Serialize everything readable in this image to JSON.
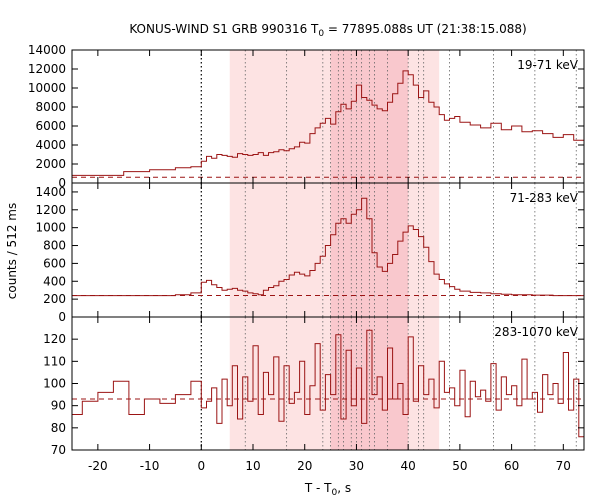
{
  "title": {
    "prefix": "KONUS-WIND S1 GRB 990316 T",
    "sub": "0",
    "suffix": " = 77895.088s UT (21:38:15.088)"
  },
  "xlabel": {
    "prefix": "T - T",
    "sub": "0",
    "suffix": ", s"
  },
  "ylabel": "counts / 512 ms",
  "colors": {
    "series": "#9b1414",
    "shade_light": "#fde3e3",
    "shade_dark": "#f9c8cd",
    "axis": "#000000",
    "guide": "#666666"
  },
  "chart_data": [
    {
      "type": "line",
      "band": "19-71 keV",
      "xlim": [
        -25,
        74
      ],
      "ylim": [
        0,
        14000
      ],
      "yticks": [
        0,
        2000,
        4000,
        6000,
        8000,
        10000,
        12000,
        14000
      ],
      "background": 600,
      "series": [
        {
          "x": [
            -25,
            -15,
            -10,
            -5,
            -2,
            0,
            1,
            2,
            3,
            4,
            5,
            6,
            7,
            8,
            9,
            10,
            11,
            12,
            13,
            14,
            15,
            16,
            17,
            18,
            19,
            20,
            21,
            22,
            23,
            24,
            25,
            26,
            27,
            28,
            29,
            30,
            31,
            32,
            33,
            34,
            35,
            36,
            37,
            38,
            39,
            40,
            41,
            42,
            43,
            44,
            45,
            46,
            47,
            48,
            49,
            50,
            52,
            54,
            56,
            58,
            60,
            62,
            64,
            66,
            68,
            70,
            72,
            74
          ],
          "y": [
            800,
            1200,
            1400,
            1600,
            1700,
            2300,
            2800,
            2600,
            3000,
            2900,
            2800,
            2700,
            3100,
            3000,
            2900,
            3000,
            3200,
            2900,
            3200,
            3300,
            3500,
            3400,
            3600,
            3800,
            4300,
            4200,
            5200,
            5800,
            6300,
            6800,
            6200,
            7500,
            8300,
            7800,
            8600,
            10300,
            9000,
            8700,
            8200,
            7800,
            7600,
            8500,
            9400,
            10500,
            11800,
            11400,
            10300,
            9000,
            9700,
            8500,
            8000,
            7200,
            6600,
            6800,
            7000,
            6400,
            6100,
            5800,
            6300,
            5600,
            6000,
            5400,
            5500,
            5200,
            4800,
            5100,
            4500,
            4400
          ]
        }
      ]
    },
    {
      "type": "line",
      "band": "71-283 keV",
      "xlim": [
        -25,
        74
      ],
      "ylim": [
        0,
        1500
      ],
      "yticks": [
        0,
        200,
        400,
        600,
        800,
        1000,
        1200,
        1400
      ],
      "background": 240,
      "series": [
        {
          "x": [
            -25,
            -15,
            -10,
            -5,
            -2,
            0,
            1,
            2,
            3,
            4,
            5,
            6,
            7,
            8,
            9,
            10,
            11,
            12,
            13,
            14,
            15,
            16,
            17,
            18,
            19,
            20,
            21,
            22,
            23,
            24,
            25,
            26,
            27,
            28,
            29,
            30,
            31,
            32,
            33,
            34,
            35,
            36,
            37,
            38,
            39,
            40,
            41,
            42,
            43,
            44,
            45,
            46,
            47,
            48,
            49,
            50,
            52,
            54,
            56,
            58,
            60,
            62,
            64,
            66,
            68,
            70,
            72,
            74
          ],
          "y": [
            240,
            240,
            240,
            250,
            270,
            390,
            410,
            360,
            330,
            300,
            310,
            320,
            300,
            290,
            270,
            260,
            250,
            300,
            330,
            350,
            400,
            420,
            470,
            500,
            480,
            460,
            520,
            600,
            680,
            800,
            920,
            1050,
            1100,
            1050,
            1150,
            1200,
            1330,
            1100,
            720,
            560,
            510,
            600,
            700,
            850,
            950,
            1020,
            980,
            900,
            780,
            620,
            480,
            420,
            370,
            340,
            310,
            290,
            275,
            270,
            260,
            255,
            250,
            250,
            245,
            245,
            240,
            240,
            240,
            240
          ]
        }
      ]
    },
    {
      "type": "line",
      "band": "283-1070 keV",
      "xlim": [
        -25,
        74
      ],
      "ylim": [
        70,
        130
      ],
      "yticks": [
        70,
        80,
        90,
        100,
        110,
        120
      ],
      "background": 93,
      "series": [
        {
          "x": [
            -25,
            -23,
            -20,
            -17,
            -14,
            -11,
            -8,
            -5,
            -2,
            0,
            1,
            2,
            3,
            4,
            5,
            6,
            7,
            8,
            9,
            10,
            11,
            12,
            13,
            14,
            15,
            16,
            17,
            18,
            19,
            20,
            21,
            22,
            23,
            24,
            25,
            26,
            27,
            28,
            29,
            30,
            31,
            32,
            33,
            34,
            35,
            36,
            37,
            38,
            39,
            40,
            41,
            42,
            43,
            44,
            45,
            46,
            47,
            48,
            49,
            50,
            51,
            52,
            53,
            54,
            55,
            56,
            57,
            58,
            59,
            60,
            61,
            62,
            63,
            64,
            65,
            66,
            67,
            68,
            69,
            70,
            71,
            72,
            73,
            74
          ],
          "y": [
            86,
            92,
            96,
            101,
            86,
            93,
            91,
            95,
            101,
            89,
            92,
            98,
            82,
            102,
            90,
            108,
            84,
            103,
            92,
            117,
            86,
            105,
            95,
            112,
            83,
            108,
            91,
            96,
            110,
            86,
            99,
            118,
            88,
            104,
            95,
            122,
            84,
            115,
            90,
            107,
            82,
            124,
            95,
            103,
            88,
            116,
            93,
            100,
            86,
            121,
            92,
            108,
            95,
            102,
            89,
            110,
            96,
            98,
            90,
            106,
            85,
            101,
            94,
            97,
            92,
            109,
            88,
            103,
            95,
            99,
            90,
            111,
            93,
            96,
            87,
            104,
            95,
            100,
            91,
            114,
            88,
            102,
            76,
            98
          ]
        }
      ]
    }
  ],
  "shaded_intervals": {
    "light": [
      [
        5.5,
        46
      ]
    ],
    "dark": [
      [
        25,
        40
      ]
    ]
  },
  "markers": {
    "t0": 0,
    "dashed_times": [
      8.5,
      16.5,
      23.5,
      25,
      26.5,
      27.5,
      29,
      30,
      31,
      32.5,
      33.5,
      36,
      40,
      42,
      43,
      48,
      56.5,
      64.5,
      72.5
    ]
  },
  "xticks": [
    -20,
    -10,
    0,
    10,
    20,
    30,
    40,
    50,
    60,
    70
  ]
}
